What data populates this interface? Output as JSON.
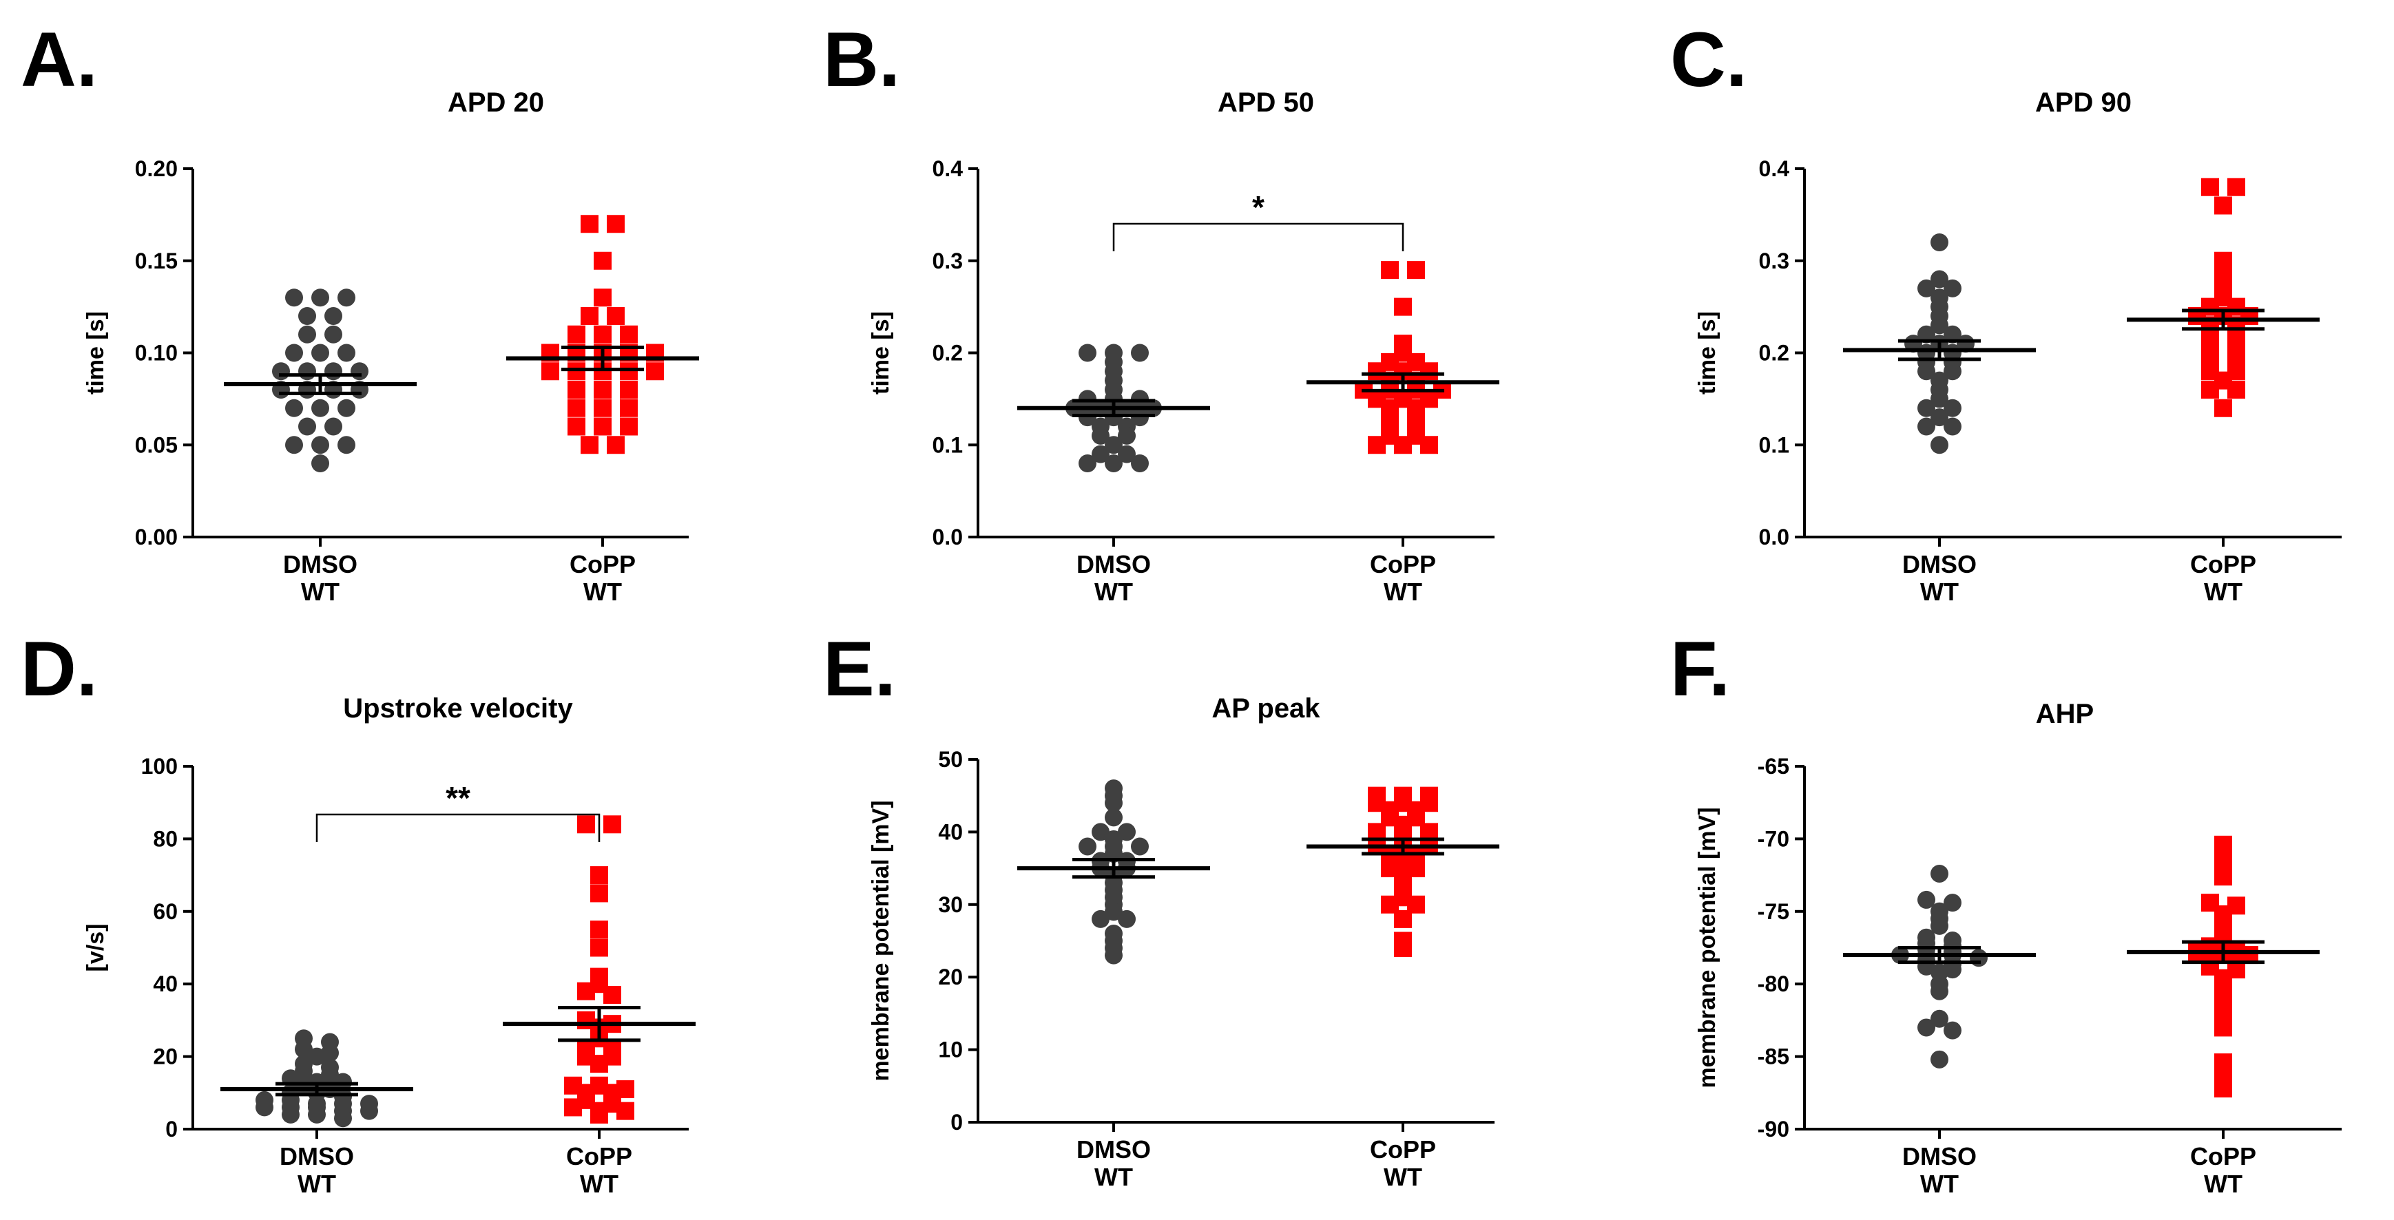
{
  "chart_data": [
    {
      "panel": "A.",
      "type": "scatter",
      "title": "APD 20",
      "xlabel": "",
      "ylabel": "time [s]",
      "ylim": [
        0,
        0.2
      ],
      "yticks": [
        "0.00",
        "0.05",
        "0.10",
        "0.15",
        "0.20"
      ],
      "groups": [
        {
          "line1": "DMSO",
          "line2": "WT",
          "color": "#404040",
          "marker": "circle",
          "mean": 0.083,
          "sem": 0.005,
          "values": [
            0.13,
            0.13,
            0.13,
            0.12,
            0.12,
            0.11,
            0.11,
            0.1,
            0.1,
            0.1,
            0.09,
            0.09,
            0.09,
            0.09,
            0.08,
            0.08,
            0.08,
            0.08,
            0.07,
            0.07,
            0.07,
            0.06,
            0.06,
            0.05,
            0.05,
            0.05,
            0.04
          ]
        },
        {
          "line1": "CoPP",
          "line2": "WT",
          "color": "#ff0000",
          "marker": "square",
          "mean": 0.097,
          "sem": 0.006,
          "values": [
            0.17,
            0.17,
            0.15,
            0.13,
            0.12,
            0.12,
            0.11,
            0.11,
            0.11,
            0.1,
            0.1,
            0.1,
            0.1,
            0.1,
            0.09,
            0.09,
            0.09,
            0.09,
            0.09,
            0.08,
            0.08,
            0.08,
            0.07,
            0.07,
            0.07,
            0.06,
            0.06,
            0.06,
            0.05,
            0.05
          ]
        }
      ]
    },
    {
      "panel": "B.",
      "type": "scatter",
      "title": "APD 50",
      "xlabel": "",
      "ylabel": "time [s]",
      "ylim": [
        0,
        0.4
      ],
      "yticks": [
        "0.0",
        "0.1",
        "0.2",
        "0.3",
        "0.4"
      ],
      "significance": "*",
      "groups": [
        {
          "line1": "DMSO",
          "line2": "WT",
          "color": "#404040",
          "marker": "circle",
          "mean": 0.14,
          "sem": 0.008,
          "values": [
            0.2,
            0.2,
            0.2,
            0.19,
            0.18,
            0.17,
            0.16,
            0.15,
            0.15,
            0.15,
            0.14,
            0.14,
            0.14,
            0.14,
            0.13,
            0.13,
            0.13,
            0.12,
            0.12,
            0.11,
            0.11,
            0.1,
            0.09,
            0.09,
            0.08,
            0.08,
            0.08
          ]
        },
        {
          "line1": "CoPP",
          "line2": "WT",
          "color": "#ff0000",
          "marker": "square",
          "mean": 0.168,
          "sem": 0.009,
          "values": [
            0.29,
            0.29,
            0.25,
            0.21,
            0.2,
            0.19,
            0.19,
            0.18,
            0.18,
            0.18,
            0.17,
            0.17,
            0.16,
            0.16,
            0.16,
            0.16,
            0.15,
            0.15,
            0.15,
            0.14,
            0.14,
            0.13,
            0.13,
            0.12,
            0.12,
            0.11,
            0.11,
            0.1,
            0.1,
            0.1
          ]
        }
      ]
    },
    {
      "panel": "C.",
      "type": "scatter",
      "title": "APD 90",
      "xlabel": "",
      "ylabel": "time [s]",
      "ylim": [
        0,
        0.4
      ],
      "yticks": [
        "0.0",
        "0.1",
        "0.2",
        "0.3",
        "0.4"
      ],
      "groups": [
        {
          "line1": "DMSO",
          "line2": "WT",
          "color": "#404040",
          "marker": "circle",
          "mean": 0.203,
          "sem": 0.01,
          "values": [
            0.32,
            0.28,
            0.27,
            0.27,
            0.26,
            0.25,
            0.24,
            0.23,
            0.22,
            0.22,
            0.21,
            0.21,
            0.21,
            0.2,
            0.2,
            0.19,
            0.19,
            0.18,
            0.18,
            0.17,
            0.16,
            0.15,
            0.14,
            0.14,
            0.13,
            0.12,
            0.12,
            0.1
          ]
        },
        {
          "line1": "CoPP",
          "line2": "WT",
          "color": "#ff0000",
          "marker": "square",
          "mean": 0.236,
          "sem": 0.01,
          "values": [
            0.38,
            0.38,
            0.36,
            0.3,
            0.29,
            0.28,
            0.27,
            0.26,
            0.25,
            0.25,
            0.24,
            0.24,
            0.24,
            0.23,
            0.23,
            0.22,
            0.22,
            0.21,
            0.21,
            0.2,
            0.2,
            0.19,
            0.19,
            0.18,
            0.18,
            0.17,
            0.16,
            0.16,
            0.14
          ]
        }
      ]
    },
    {
      "panel": "D.",
      "type": "scatter",
      "title": "Upstroke velocity",
      "xlabel": "",
      "ylabel": "[v/s]",
      "ylim": [
        0,
        100
      ],
      "yticks": [
        "0",
        "20",
        "40",
        "60",
        "80",
        "100"
      ],
      "significance": "**",
      "groups": [
        {
          "line1": "DMSO",
          "line2": "WT",
          "color": "#404040",
          "marker": "circle",
          "mean": 11,
          "sem": 1.5,
          "values": [
            25,
            24,
            22,
            21,
            20,
            18,
            17,
            16,
            15,
            14,
            13,
            13,
            12,
            11,
            10,
            10,
            9,
            8,
            8,
            7,
            7,
            7,
            6,
            6,
            6,
            5,
            5,
            4,
            4,
            3
          ]
        },
        {
          "line1": "CoPP",
          "line2": "WT",
          "color": "#ff0000",
          "marker": "square",
          "mean": 29,
          "sem": 4.5,
          "values": [
            84,
            84,
            70,
            65,
            55,
            50,
            42,
            40,
            38,
            37,
            30,
            29,
            28,
            25,
            22,
            22,
            20,
            20,
            18,
            12,
            12,
            11,
            10,
            10,
            8,
            7,
            6,
            5,
            5,
            4
          ]
        }
      ]
    },
    {
      "panel": "E.",
      "type": "scatter",
      "title": "AP peak",
      "xlabel": "",
      "ylabel": "membrane potential [mV]",
      "ylim": [
        0,
        50
      ],
      "yticks": [
        "0",
        "10",
        "20",
        "30",
        "40",
        "50"
      ],
      "groups": [
        {
          "line1": "DMSO",
          "line2": "WT",
          "color": "#404040",
          "marker": "circle",
          "mean": 35,
          "sem": 1.2,
          "values": [
            46,
            45,
            44,
            42,
            40,
            40,
            39,
            38,
            38,
            38,
            37,
            36,
            36,
            35,
            35,
            34,
            33,
            32,
            31,
            30,
            29,
            28,
            28,
            26,
            25,
            24,
            23
          ]
        },
        {
          "line1": "CoPP",
          "line2": "WT",
          "color": "#ff0000",
          "marker": "square",
          "mean": 38,
          "sem": 1.0,
          "values": [
            45,
            45,
            45,
            44,
            44,
            44,
            43,
            43,
            42,
            42,
            41,
            40,
            40,
            40,
            39,
            38,
            38,
            38,
            37,
            37,
            36,
            35,
            35,
            34,
            33,
            32,
            31,
            30,
            30,
            28,
            25,
            24
          ]
        }
      ]
    },
    {
      "panel": "F.",
      "type": "scatter",
      "title": "AHP",
      "xlabel": "",
      "ylabel": "membrane potential [mV]",
      "ylim": [
        -90,
        -65
      ],
      "yticks": [
        "-90",
        "-85",
        "-80",
        "-75",
        "-70",
        "-65"
      ],
      "groups": [
        {
          "line1": "DMSO",
          "line2": "WT",
          "color": "#404040",
          "marker": "circle",
          "mean": -78,
          "sem": 0.5,
          "values": [
            -72.4,
            -74.2,
            -74.4,
            -75,
            -75.5,
            -76,
            -76.8,
            -77,
            -77.2,
            -77.4,
            -77.6,
            -77.8,
            -78,
            -78,
            -78,
            -78.2,
            -78.4,
            -78.6,
            -78.8,
            -79,
            -79.2,
            -80,
            -80.5,
            -82.4,
            -83,
            -83.2,
            -85.2
          ]
        },
        {
          "line1": "CoPP",
          "line2": "WT",
          "color": "#ff0000",
          "marker": "square",
          "mean": -77.8,
          "sem": 0.7,
          "values": [
            -70.4,
            -71.2,
            -72.2,
            -72.6,
            -74.4,
            -74.6,
            -75.2,
            -75.8,
            -76.4,
            -77,
            -77.4,
            -77.6,
            -77.8,
            -77.8,
            -78,
            -78.2,
            -78.4,
            -78.8,
            -79,
            -79.6,
            -80.2,
            -80.6,
            -81.6,
            -82.6,
            -83,
            -85.4,
            -86,
            -87.2
          ]
        }
      ]
    }
  ]
}
